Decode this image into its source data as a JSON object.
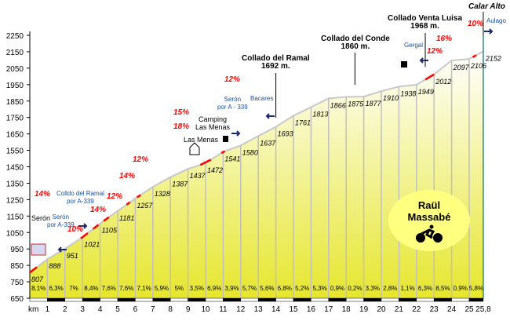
{
  "chart_data": {
    "type": "area",
    "title": "Calar Alto",
    "xlabel": "km",
    "ylabel": "",
    "ylim": [
      650,
      2250
    ],
    "xlim": [
      0,
      25.8
    ],
    "yticks": [
      650,
      750,
      850,
      950,
      1050,
      1150,
      1250,
      1350,
      1450,
      1550,
      1650,
      1750,
      1850,
      1950,
      2050,
      2150,
      2250
    ],
    "xticks": [
      "1",
      "2",
      "3",
      "4",
      "5",
      "6",
      "7",
      "8",
      "9",
      "10",
      "11",
      "12",
      "13",
      "14",
      "15",
      "16",
      "17",
      "18",
      "19",
      "20",
      "21",
      "22",
      "23",
      "24",
      "25",
      "25,8"
    ],
    "x_prefix": "km",
    "x": [
      0,
      1,
      2,
      3,
      4,
      5,
      6,
      7,
      8,
      9,
      10,
      11,
      12,
      13,
      14,
      15,
      16,
      17,
      18,
      19,
      20,
      21,
      22,
      23,
      24,
      25,
      25.8
    ],
    "elevation": [
      807,
      888,
      951,
      1021,
      1105,
      1181,
      1257,
      1328,
      1387,
      1437,
      1472,
      1541,
      1580,
      1637,
      1693,
      1761,
      1813,
      1866,
      1875,
      1877,
      1910,
      1938,
      1949,
      2012,
      2097,
      2106,
      2152
    ],
    "gradients": [
      "8,1%",
      "6,3%",
      "7%",
      "8,4%",
      "7,6%",
      "7,6%",
      "7,1%",
      "5,9%",
      "5%",
      "3,5%",
      "6,9%",
      "3,9%",
      "5,7%",
      "5,6%",
      "6,8%",
      "5,2%",
      "5,3%",
      "0,9%",
      "0,2%",
      "3,3%",
      "2,8%",
      "1,1%",
      "6,3%",
      "8,5%",
      "0,9%",
      "5,8%"
    ],
    "colors": {
      "fill_top": "#ffffff",
      "fill_bottom": "#e6e62e",
      "line": "#c8c8c8",
      "steep": "#ff0000",
      "end_line": "#2a8a8a"
    }
  },
  "annotations": {
    "steep": [
      "14%",
      "10%",
      "14%",
      "12%",
      "14%",
      "12%",
      "15%",
      "18%",
      "12%",
      "12%",
      "16%",
      "10%"
    ],
    "places": {
      "seron": "Serón",
      "seron_a339_1": [
        "Serón",
        "por A-339"
      ],
      "colldo_ramal": [
        "Colldo del Ramal",
        "por A-339"
      ],
      "camping": [
        "Camping",
        "Las Menas"
      ],
      "las_menas": "Las Menas",
      "seron_a339_2": [
        "Serón",
        "por A - 339"
      ],
      "bacares": "Bacares",
      "gergal": "Gergal",
      "aulago": "Aulago"
    },
    "passes": [
      {
        "name": "Collado del Ramal",
        "alt": "1692 m."
      },
      {
        "name": "Collado del Conde",
        "alt": "1860 m."
      },
      {
        "name": "Collado Venta Luisa",
        "alt": "1968 m."
      }
    ],
    "summit": "Calar Alto"
  },
  "logo": {
    "line1": "Raül",
    "line2": "Massabé"
  }
}
